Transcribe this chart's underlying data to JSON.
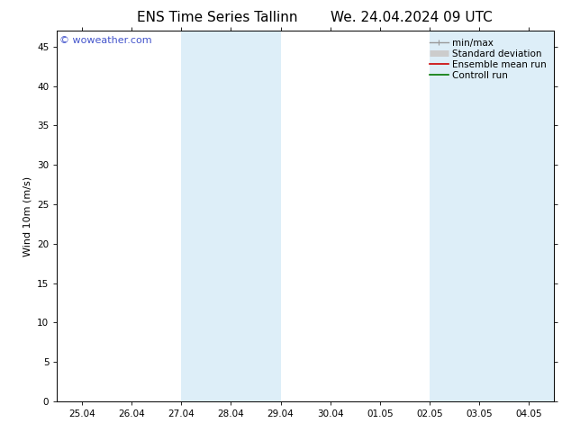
{
  "title_left": "ENS Time Series Tallinn",
  "title_right": "We. 24.04.2024 09 UTC",
  "ylabel": "Wind 10m (m/s)",
  "yticks": [
    0,
    5,
    10,
    15,
    20,
    25,
    30,
    35,
    40,
    45
  ],
  "ymax": 47,
  "ymin": 0,
  "xtick_labels": [
    "25.04",
    "26.04",
    "27.04",
    "28.04",
    "29.04",
    "30.04",
    "01.05",
    "02.05",
    "03.05",
    "04.05"
  ],
  "xtick_positions": [
    0,
    1,
    2,
    3,
    4,
    5,
    6,
    7,
    8,
    9
  ],
  "xmin": -0.5,
  "xmax": 9.5,
  "shaded_bands": [
    {
      "xstart": 2.0,
      "xend": 3.0,
      "color": "#ddeef8"
    },
    {
      "xstart": 3.0,
      "xend": 4.0,
      "color": "#ddeef8"
    },
    {
      "xstart": 7.0,
      "xend": 8.0,
      "color": "#ddeef8"
    },
    {
      "xstart": 8.0,
      "xend": 9.5,
      "color": "#ddeef8"
    }
  ],
  "watermark_text": "© woweather.com",
  "watermark_color": "#4455cc",
  "watermark_fontsize": 8,
  "legend_entries": [
    {
      "label": "min/max",
      "color": "#999999",
      "lw": 1.0,
      "style": "solid",
      "type": "minmax"
    },
    {
      "label": "Standard deviation",
      "color": "#cccccc",
      "lw": 5,
      "style": "solid",
      "type": "band"
    },
    {
      "label": "Ensemble mean run",
      "color": "#cc0000",
      "lw": 1.2,
      "style": "solid",
      "type": "line"
    },
    {
      "label": "Controll run",
      "color": "#007700",
      "lw": 1.2,
      "style": "solid",
      "type": "line"
    }
  ],
  "bg_color": "#ffffff",
  "plot_bg_color": "#ffffff",
  "title_fontsize": 11,
  "axis_label_fontsize": 8,
  "tick_fontsize": 7.5,
  "legend_fontsize": 7.5
}
